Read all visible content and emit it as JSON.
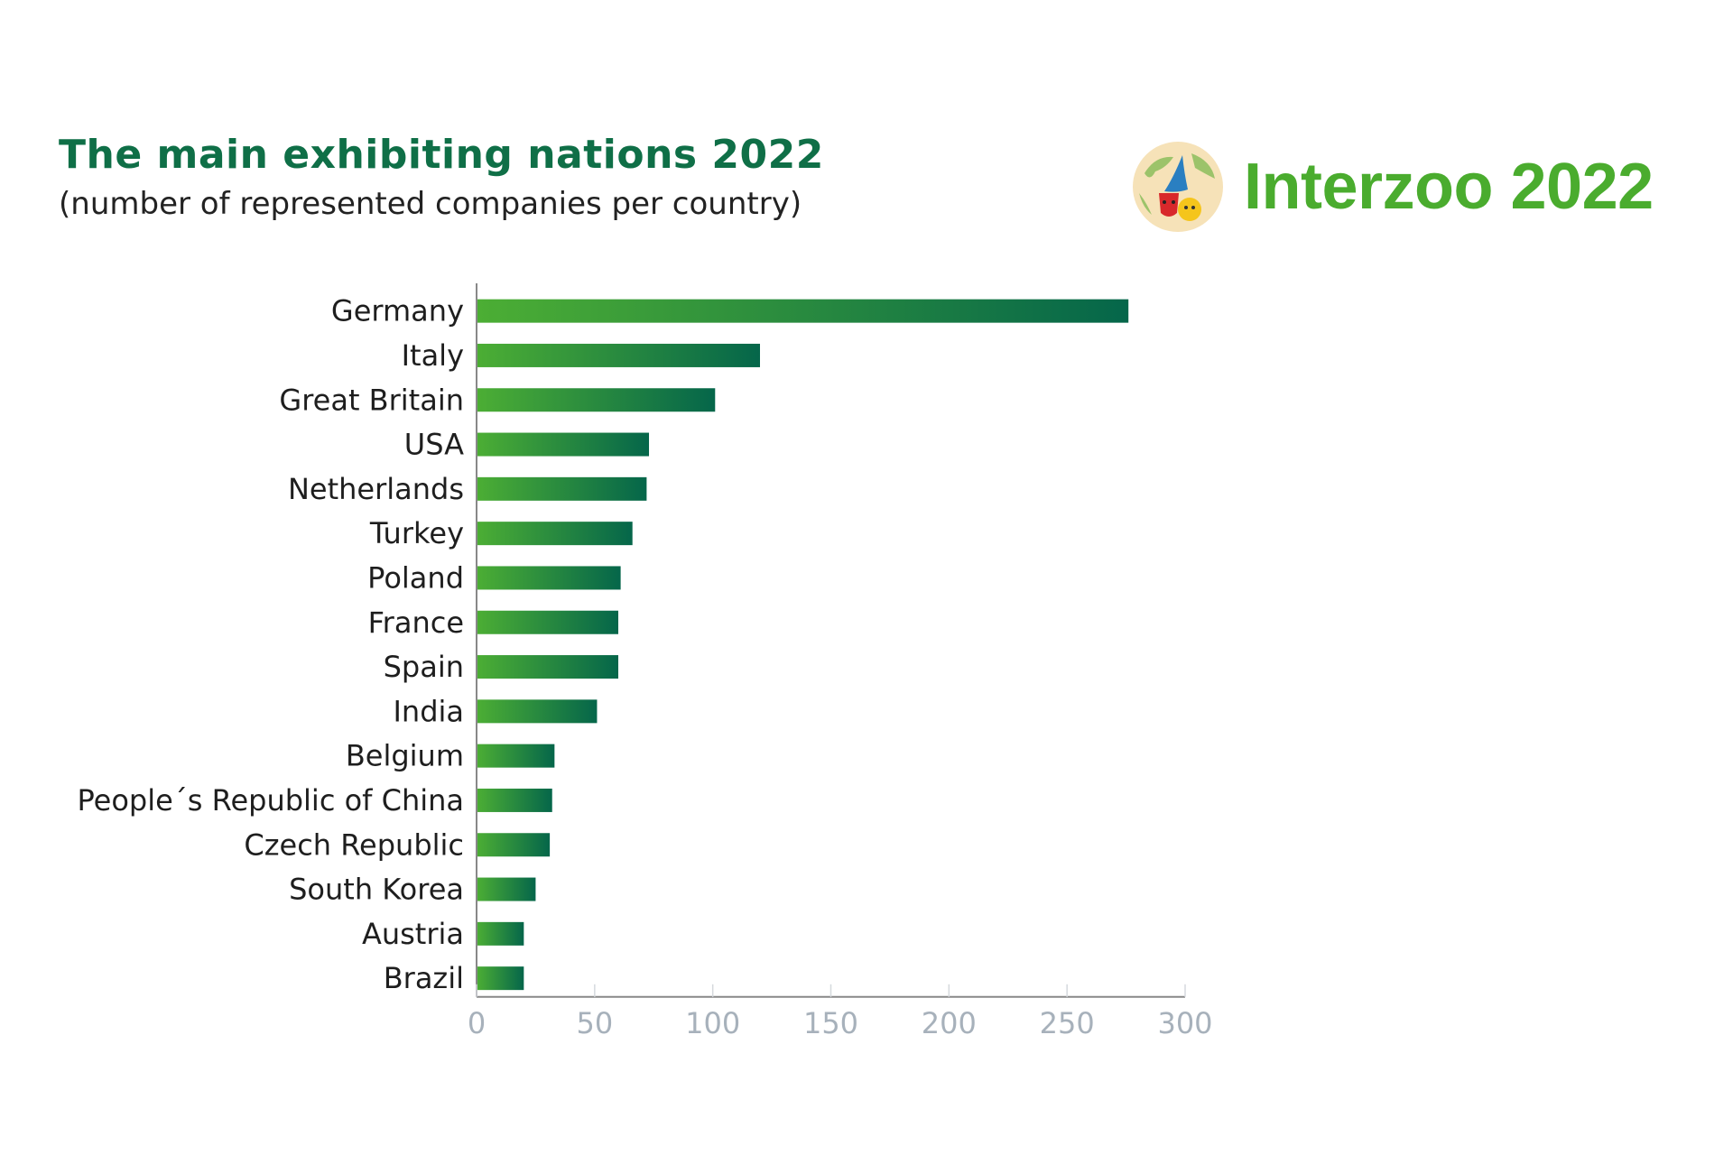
{
  "header": {
    "title": "The main exhibiting nations 2022",
    "subtitle": "(number of represented companies per country)"
  },
  "brand": {
    "name": "Interzoo 2022",
    "logo_icon": "interzoo-globe-logo-icon",
    "color": "#4aac2e"
  },
  "colors": {
    "title": "#0f6f47",
    "bar_start": "#4cae34",
    "bar_end": "#05664a",
    "axis": "#888888",
    "tick_label": "#a7b1bb"
  },
  "chart_data": {
    "type": "bar",
    "orientation": "horizontal",
    "title": "The main exhibiting nations 2022",
    "subtitle": "(number of represented companies per country)",
    "categories": [
      "Germany",
      "Italy",
      "Great Britain",
      "USA",
      "Netherlands",
      "Turkey",
      "Poland",
      "France",
      "Spain",
      "India",
      "Belgium",
      "People´s Republic of China",
      "Czech Republic",
      "South Korea",
      "Austria",
      "Brazil"
    ],
    "values": [
      276,
      120,
      101,
      73,
      72,
      66,
      61,
      60,
      60,
      51,
      33,
      32,
      31,
      25,
      20,
      20
    ],
    "xlim": [
      0,
      300
    ],
    "xticks": [
      0,
      50,
      100,
      150,
      200,
      250,
      300
    ],
    "xlabel": "",
    "ylabel": "",
    "grid": false,
    "legend": "none"
  }
}
